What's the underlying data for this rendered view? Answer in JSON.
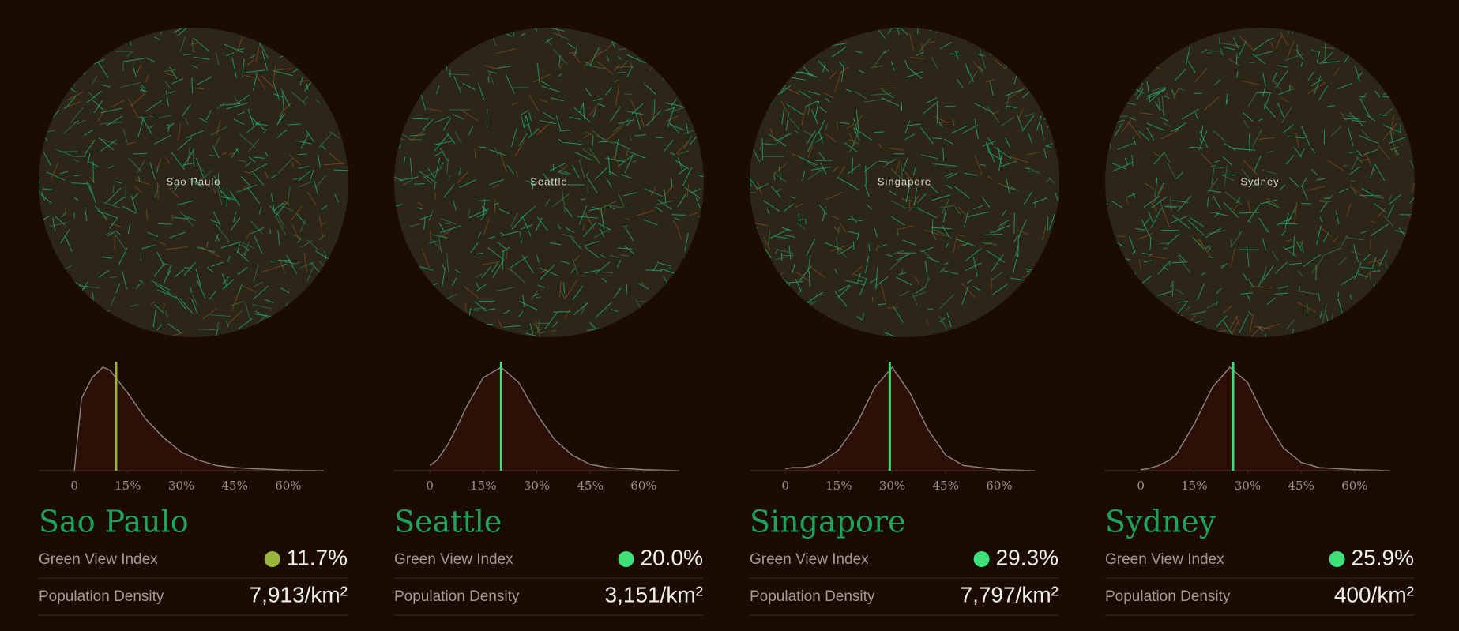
{
  "x_axis": {
    "xlim": [
      -10,
      70
    ],
    "ylim": [
      0,
      1
    ],
    "xticks": [
      0,
      {
        "value": 15,
        "label": "15%"
      },
      {
        "value": 30,
        "label": "30%"
      },
      {
        "value": 45,
        "label": "45%"
      },
      {
        "value": 60,
        "label": "60%"
      }
    ]
  },
  "distribution_x": [
    0,
    2,
    5,
    8,
    10,
    15,
    20,
    25,
    30,
    35,
    40,
    45,
    50,
    60,
    70
  ],
  "cities": [
    {
      "name": "Sao Paulo",
      "map_label": "Sao Paulo",
      "gvi": {
        "label": "Green View Index",
        "value": 11.7,
        "value_label": "11.7%",
        "color": "#9ab43c"
      },
      "density": {
        "label": "Population Density",
        "value": 7913,
        "value_label": "7,913/km²"
      },
      "distribution": [
        0,
        0.7,
        0.9,
        1.0,
        0.97,
        0.75,
        0.5,
        0.32,
        0.18,
        0.1,
        0.05,
        0.03,
        0.02,
        0.005,
        0
      ]
    },
    {
      "name": "Seattle",
      "map_label": "Seattle",
      "gvi": {
        "label": "Green View Index",
        "value": 20.0,
        "value_label": "20.0%",
        "color": "#3fe07a"
      },
      "density": {
        "label": "Population Density",
        "value": 3151,
        "value_label": "3,151/km²"
      },
      "distribution": [
        0.05,
        0.1,
        0.25,
        0.45,
        0.6,
        0.9,
        1.0,
        0.85,
        0.55,
        0.3,
        0.15,
        0.06,
        0.03,
        0.01,
        0
      ]
    },
    {
      "name": "Singapore",
      "map_label": "Singapore",
      "gvi": {
        "label": "Green View Index",
        "value": 29.3,
        "value_label": "29.3%",
        "color": "#3fe07a"
      },
      "density": {
        "label": "Population Density",
        "value": 7797,
        "value_label": "7,797/km²"
      },
      "distribution": [
        0.02,
        0.03,
        0.03,
        0.05,
        0.08,
        0.2,
        0.45,
        0.8,
        1.0,
        0.75,
        0.4,
        0.15,
        0.05,
        0.01,
        0
      ]
    },
    {
      "name": "Sydney",
      "map_label": "Sydney",
      "gvi": {
        "label": "Green View Index",
        "value": 25.9,
        "value_label": "25.9%",
        "color": "#3fe07a"
      },
      "density": {
        "label": "Population Density",
        "value": 400,
        "value_label": "400/km²"
      },
      "distribution": [
        0.01,
        0.02,
        0.05,
        0.1,
        0.16,
        0.45,
        0.8,
        1.0,
        0.85,
        0.5,
        0.22,
        0.08,
        0.03,
        0.01,
        0
      ]
    }
  ]
}
